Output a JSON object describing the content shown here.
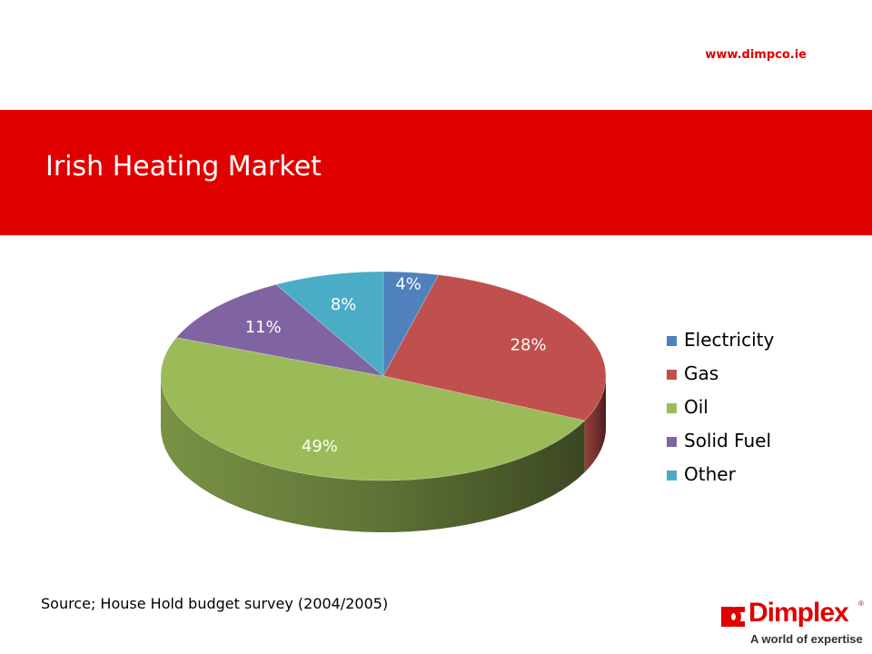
{
  "header": {
    "url": "www.dimpco.ie"
  },
  "banner": {
    "title": "Irish Heating Market"
  },
  "source": "Source; House Hold budget survey (2004/2005)",
  "logo": {
    "name": "Dimplex",
    "registered": "®",
    "tagline": "A world of expertise"
  },
  "colors": {
    "brand": "#e00000"
  },
  "chart_data": {
    "type": "pie",
    "style": "3d",
    "title": "",
    "labels": [
      "Electricity",
      "Gas",
      "Oil",
      "Solid Fuel",
      "Other"
    ],
    "values": [
      4,
      28,
      49,
      11,
      8
    ],
    "data_labels": [
      "4%",
      "28%",
      "49%",
      "11%",
      "8%"
    ],
    "colors": [
      "#4f81bd",
      "#c0504d",
      "#9bbb59",
      "#8064a2",
      "#4bacc6"
    ],
    "legend": {
      "position": "right",
      "items": [
        "Electricity",
        "Gas",
        "Oil",
        "Solid Fuel",
        "Other"
      ]
    }
  }
}
